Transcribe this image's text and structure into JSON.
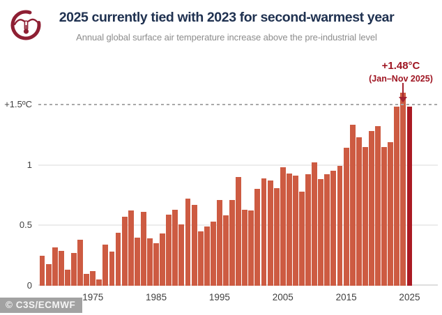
{
  "chart_data": {
    "type": "bar",
    "title": "2025 currently tied with 2023 for second-warmest year",
    "subtitle": "Annual global surface air temperature increase above the pre-industrial level",
    "years": [
      1967,
      1968,
      1969,
      1970,
      1971,
      1972,
      1973,
      1974,
      1975,
      1976,
      1977,
      1978,
      1979,
      1980,
      1981,
      1982,
      1983,
      1984,
      1985,
      1986,
      1987,
      1988,
      1989,
      1990,
      1991,
      1992,
      1993,
      1994,
      1995,
      1996,
      1997,
      1998,
      1999,
      2000,
      2001,
      2002,
      2003,
      2004,
      2005,
      2006,
      2007,
      2008,
      2009,
      2010,
      2011,
      2012,
      2013,
      2014,
      2015,
      2016,
      2017,
      2018,
      2019,
      2020,
      2021,
      2022,
      2023,
      2024,
      2025
    ],
    "values": [
      0.25,
      0.18,
      0.32,
      0.29,
      0.13,
      0.27,
      0.38,
      0.1,
      0.12,
      0.05,
      0.34,
      0.28,
      0.44,
      0.57,
      0.62,
      0.4,
      0.61,
      0.39,
      0.35,
      0.43,
      0.59,
      0.63,
      0.51,
      0.72,
      0.67,
      0.45,
      0.49,
      0.53,
      0.71,
      0.58,
      0.71,
      0.9,
      0.63,
      0.62,
      0.8,
      0.89,
      0.87,
      0.81,
      0.98,
      0.93,
      0.91,
      0.78,
      0.92,
      1.02,
      0.88,
      0.92,
      0.95,
      0.99,
      1.14,
      1.33,
      1.23,
      1.15,
      1.28,
      1.32,
      1.15,
      1.19,
      1.48,
      1.6,
      1.48
    ],
    "highlight_year": 2025,
    "bar_color": "#cd5b42",
    "highlight_color": "#aa1a23",
    "ylim": [
      0,
      1.67
    ],
    "grid": "horizontal",
    "yticks": [
      {
        "label": "+1.5ºC",
        "value": 1.5,
        "style": "dashed"
      },
      {
        "label": "1",
        "value": 1.0,
        "style": "solid"
      },
      {
        "label": "0.5",
        "value": 0.5,
        "style": "solid"
      },
      {
        "label": "0",
        "value": 0,
        "style": "none"
      }
    ],
    "xticks": [
      1975,
      1985,
      1995,
      2005,
      2015,
      2025
    ],
    "annotation": {
      "value_label": "+1.48°C",
      "period_label": "(Jan–Nov 2025)",
      "target_year": 2025
    }
  },
  "footer": {
    "credit": "© C3S/ECMWF"
  }
}
